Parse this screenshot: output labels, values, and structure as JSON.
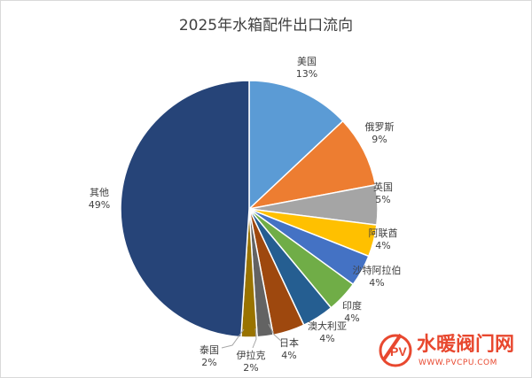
{
  "chart_data": {
    "type": "pie",
    "title": "2025年水箱配件出口流向",
    "slices": [
      {
        "name": "美国",
        "value": 13,
        "label": "13%",
        "color": "#5b9bd5"
      },
      {
        "name": "俄罗斯",
        "value": 9,
        "label": "9%",
        "color": "#ed7d31"
      },
      {
        "name": "英国",
        "value": 5,
        "label": "5%",
        "color": "#a5a5a5"
      },
      {
        "name": "阿联酋",
        "value": 4,
        "label": "4%",
        "color": "#ffc000"
      },
      {
        "name": "沙特阿拉伯",
        "value": 4,
        "label": "4%",
        "color": "#4472c4"
      },
      {
        "name": "印度",
        "value": 4,
        "label": "4%",
        "color": "#70ad47"
      },
      {
        "name": "澳大利亚",
        "value": 4,
        "label": "4%",
        "color": "#255e91"
      },
      {
        "name": "日本",
        "value": 4,
        "label": "4%",
        "color": "#9e480e"
      },
      {
        "name": "伊拉克",
        "value": 2,
        "label": "2%",
        "color": "#636363"
      },
      {
        "name": "泰国",
        "value": 2,
        "label": "2%",
        "color": "#997300"
      },
      {
        "name": "其他",
        "value": 49,
        "label": "49%",
        "color": "#264478"
      }
    ]
  },
  "watermark": {
    "brand": "水暖阀门网",
    "url": "WWW.PVCPU.COM",
    "logo_letters": "PV",
    "color": "#e8482f"
  }
}
